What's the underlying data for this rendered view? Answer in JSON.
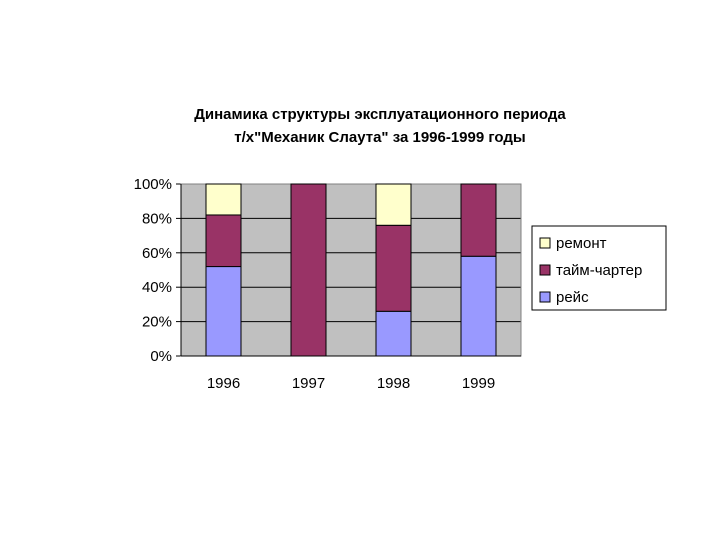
{
  "chart_data": {
    "type": "bar",
    "stacked": true,
    "percent": true,
    "title_lines": [
      "Динамика структуры эксплуатационного периода",
      "т/х\"Механик Слаута\" за 1996-1999 годы"
    ],
    "categories": [
      "1996",
      "1997",
      "1998",
      "1999"
    ],
    "y_ticks": [
      "0%",
      "20%",
      "40%",
      "60%",
      "80%",
      "100%"
    ],
    "ylim": [
      0,
      100
    ],
    "grid": true,
    "legend_position": "right",
    "series": [
      {
        "name": "рейс",
        "values": [
          52,
          0,
          26,
          58
        ],
        "color": "#9999FF"
      },
      {
        "name": "тайм-чартер",
        "values": [
          30,
          100,
          50,
          42
        ],
        "color": "#993366"
      },
      {
        "name": "ремонт",
        "values": [
          18,
          0,
          24,
          0
        ],
        "color": "#FFFFCC"
      }
    ],
    "legend_order": [
      "ремонт",
      "тайм-чартер",
      "рейс"
    ],
    "plot_background": "#C0C0C0"
  }
}
